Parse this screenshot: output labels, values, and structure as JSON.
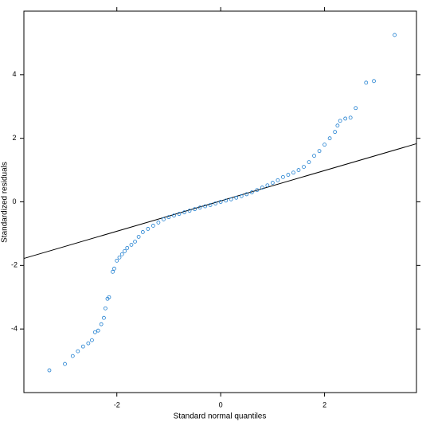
{
  "chart_data": {
    "type": "scatter",
    "xlabel": "Standard normal quantiles",
    "ylabel": "Standardized residuals",
    "x": [
      -3.3,
      -3.0,
      -2.85,
      -2.75,
      -2.65,
      -2.55,
      -2.48,
      -2.42,
      -2.36,
      -2.3,
      -2.25,
      -2.22,
      -2.18,
      -2.15,
      -2.08,
      -2.05,
      -2.0,
      -1.95,
      -1.9,
      -1.85,
      -1.8,
      -1.72,
      -1.65,
      -1.58,
      -1.5,
      -1.4,
      -1.3,
      -1.2,
      -1.1,
      -1.0,
      -0.9,
      -0.8,
      -0.7,
      -0.6,
      -0.5,
      -0.4,
      -0.3,
      -0.2,
      -0.1,
      0,
      0.1,
      0.2,
      0.3,
      0.4,
      0.5,
      0.6,
      0.7,
      0.8,
      0.9,
      1.0,
      1.1,
      1.2,
      1.3,
      1.4,
      1.5,
      1.6,
      1.7,
      1.8,
      1.9,
      2.0,
      2.1,
      2.2,
      2.25,
      2.3,
      2.4,
      2.5,
      2.6,
      2.8,
      2.95,
      3.35
    ],
    "values": [
      -5.3,
      -5.1,
      -4.85,
      -4.7,
      -4.55,
      -4.45,
      -4.35,
      -4.1,
      -4.05,
      -3.85,
      -3.65,
      -3.35,
      -3.05,
      -3.0,
      -2.2,
      -2.1,
      -1.85,
      -1.75,
      -1.65,
      -1.55,
      -1.45,
      -1.35,
      -1.25,
      -1.1,
      -0.95,
      -0.85,
      -0.75,
      -0.65,
      -0.55,
      -0.48,
      -0.43,
      -0.38,
      -0.33,
      -0.28,
      -0.23,
      -0.18,
      -0.14,
      -0.1,
      -0.05,
      0,
      0.04,
      0.08,
      0.13,
      0.18,
      0.24,
      0.3,
      0.37,
      0.45,
      0.52,
      0.6,
      0.68,
      0.78,
      0.85,
      0.92,
      1.0,
      1.1,
      1.25,
      1.45,
      1.6,
      1.8,
      2.0,
      2.2,
      2.4,
      2.55,
      2.62,
      2.65,
      2.95,
      3.75,
      3.8,
      5.25
    ],
    "color": "#1f7fd0",
    "reference_line": {
      "x": [
        -3.79,
        3.77
      ],
      "values": [
        -1.78,
        1.83
      ],
      "color": "#000000"
    },
    "xlim": [
      -3.79,
      3.77
    ],
    "ylim": [
      -6,
      6
    ],
    "xticks": [
      -2,
      0,
      2
    ],
    "yticks": [
      -4,
      -2,
      0,
      2,
      4
    ]
  }
}
